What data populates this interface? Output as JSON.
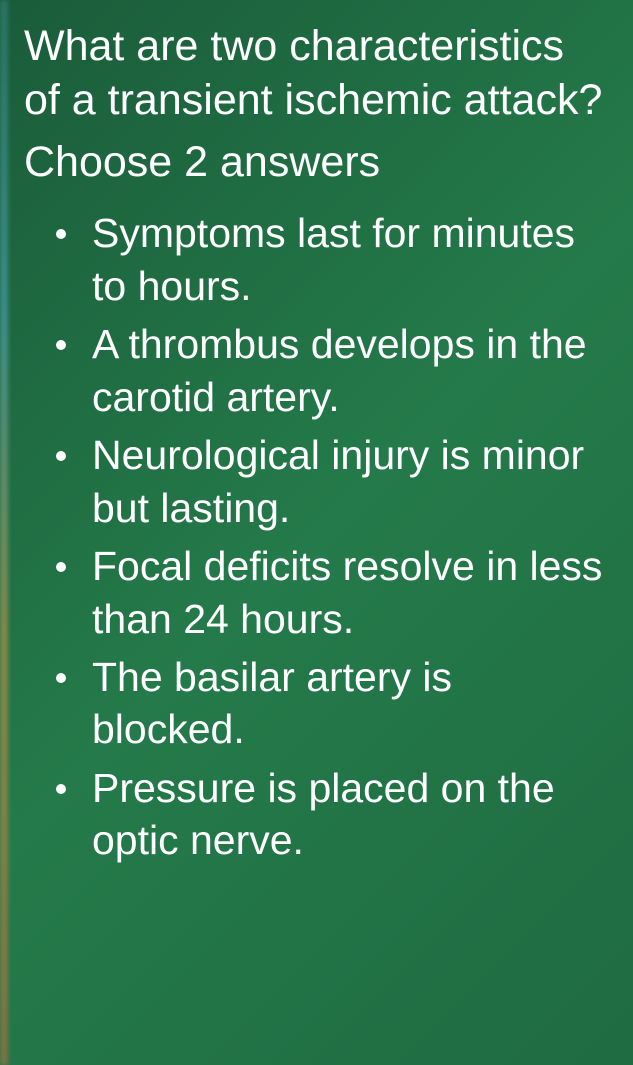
{
  "quiz": {
    "question": "What are two characteristics of a transient ischemic attack?",
    "instruction": "Choose 2 answers",
    "options": [
      "Symptoms last for minutes to hours.",
      "A thrombus develops in the carotid artery.",
      "Neurological injury is minor but lasting.",
      "Focal deficits resolve in less than 24 hours.",
      "The basilar artery is blocked.",
      "Pressure is placed on the optic nerve."
    ]
  },
  "style": {
    "background_color": "#1f6b42",
    "text_color": "#ffffff",
    "question_fontsize": 43,
    "option_fontsize": 41,
    "bullet_color": "#ffffff",
    "font_family": "Arial"
  }
}
